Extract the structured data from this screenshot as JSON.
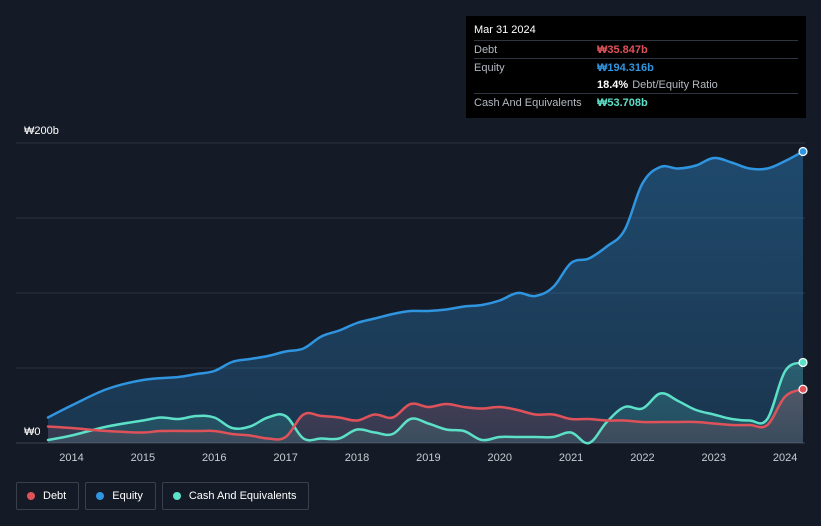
{
  "chart_data": {
    "type": "area",
    "currency": "₩",
    "unit": "b",
    "ylim": [
      0,
      200
    ],
    "y_top_label": "₩200b",
    "y_bottom_label": "₩0",
    "xlim": [
      2013.67,
      2024.25
    ],
    "x_tick_labels": [
      "2014",
      "2015",
      "2016",
      "2017",
      "2018",
      "2019",
      "2020",
      "2021",
      "2022",
      "2023",
      "2024"
    ],
    "grid": true,
    "legend_position": "bottom-left",
    "series": [
      {
        "name": "Debt",
        "color": "#e0525a",
        "points": [
          [
            2013.67,
            11
          ],
          [
            2014.0,
            10
          ],
          [
            2014.5,
            8
          ],
          [
            2015.0,
            7
          ],
          [
            2015.25,
            8
          ],
          [
            2015.75,
            8
          ],
          [
            2016.0,
            8
          ],
          [
            2016.25,
            6
          ],
          [
            2016.5,
            5
          ],
          [
            2016.75,
            3
          ],
          [
            2017.0,
            4
          ],
          [
            2017.25,
            19
          ],
          [
            2017.5,
            18
          ],
          [
            2017.75,
            17
          ],
          [
            2018.0,
            15
          ],
          [
            2018.25,
            19
          ],
          [
            2018.5,
            17
          ],
          [
            2018.75,
            26
          ],
          [
            2019.0,
            24
          ],
          [
            2019.25,
            26
          ],
          [
            2019.5,
            24
          ],
          [
            2019.75,
            23
          ],
          [
            2020.0,
            24
          ],
          [
            2020.25,
            22
          ],
          [
            2020.5,
            19
          ],
          [
            2020.75,
            19
          ],
          [
            2021.0,
            16
          ],
          [
            2021.25,
            16
          ],
          [
            2021.5,
            15
          ],
          [
            2021.75,
            15
          ],
          [
            2022.0,
            14
          ],
          [
            2022.25,
            14
          ],
          [
            2022.5,
            14
          ],
          [
            2022.75,
            14
          ],
          [
            2023.0,
            13
          ],
          [
            2023.25,
            12
          ],
          [
            2023.5,
            12
          ],
          [
            2023.75,
            12
          ],
          [
            2024.0,
            31
          ],
          [
            2024.25,
            35.847
          ]
        ]
      },
      {
        "name": "Equity",
        "color": "#2f95e0",
        "points": [
          [
            2013.67,
            17
          ],
          [
            2014.0,
            25
          ],
          [
            2014.5,
            36
          ],
          [
            2015.0,
            42
          ],
          [
            2015.5,
            44
          ],
          [
            2015.75,
            46
          ],
          [
            2016.0,
            48
          ],
          [
            2016.25,
            54
          ],
          [
            2016.5,
            56
          ],
          [
            2016.75,
            58
          ],
          [
            2017.0,
            61
          ],
          [
            2017.25,
            63
          ],
          [
            2017.5,
            71
          ],
          [
            2017.75,
            75
          ],
          [
            2018.0,
            80
          ],
          [
            2018.25,
            83
          ],
          [
            2018.5,
            86
          ],
          [
            2018.75,
            88
          ],
          [
            2019.0,
            88
          ],
          [
            2019.25,
            89
          ],
          [
            2019.5,
            91
          ],
          [
            2019.75,
            92
          ],
          [
            2020.0,
            95
          ],
          [
            2020.25,
            100
          ],
          [
            2020.5,
            98
          ],
          [
            2020.75,
            104
          ],
          [
            2021.0,
            120
          ],
          [
            2021.25,
            123
          ],
          [
            2021.5,
            131
          ],
          [
            2021.75,
            142
          ],
          [
            2022.0,
            173
          ],
          [
            2022.25,
            184
          ],
          [
            2022.5,
            183
          ],
          [
            2022.75,
            185
          ],
          [
            2023.0,
            190
          ],
          [
            2023.25,
            187
          ],
          [
            2023.5,
            183
          ],
          [
            2023.75,
            183
          ],
          [
            2024.0,
            188
          ],
          [
            2024.25,
            194.316
          ]
        ]
      },
      {
        "name": "Cash And Equivalents",
        "color": "#5ce0c8",
        "points": [
          [
            2013.67,
            2
          ],
          [
            2014.0,
            5
          ],
          [
            2014.5,
            11
          ],
          [
            2015.0,
            15
          ],
          [
            2015.25,
            17
          ],
          [
            2015.5,
            16
          ],
          [
            2015.75,
            18
          ],
          [
            2016.0,
            17
          ],
          [
            2016.25,
            10
          ],
          [
            2016.5,
            11
          ],
          [
            2016.75,
            17
          ],
          [
            2017.0,
            18
          ],
          [
            2017.25,
            3
          ],
          [
            2017.5,
            3
          ],
          [
            2017.75,
            3
          ],
          [
            2018.0,
            9
          ],
          [
            2018.25,
            7
          ],
          [
            2018.5,
            6
          ],
          [
            2018.75,
            16
          ],
          [
            2019.0,
            13
          ],
          [
            2019.25,
            9
          ],
          [
            2019.5,
            8
          ],
          [
            2019.75,
            2
          ],
          [
            2020.0,
            4
          ],
          [
            2020.25,
            4
          ],
          [
            2020.5,
            4
          ],
          [
            2020.75,
            4
          ],
          [
            2021.0,
            7
          ],
          [
            2021.25,
            0
          ],
          [
            2021.5,
            14
          ],
          [
            2021.75,
            24
          ],
          [
            2022.0,
            23
          ],
          [
            2022.25,
            33
          ],
          [
            2022.5,
            28
          ],
          [
            2022.75,
            22
          ],
          [
            2023.0,
            19
          ],
          [
            2023.25,
            16
          ],
          [
            2023.5,
            15
          ],
          [
            2023.75,
            16
          ],
          [
            2024.0,
            48
          ],
          [
            2024.25,
            53.708
          ]
        ]
      }
    ]
  },
  "tooltip": {
    "date": "Mar 31 2024",
    "debt_label": "Debt",
    "debt_value": "₩35.847b",
    "equity_label": "Equity",
    "equity_value": "₩194.316b",
    "ratio_value": "18.4%",
    "ratio_label": "Debt/Equity Ratio",
    "cash_label": "Cash And Equivalents",
    "cash_value": "₩53.708b"
  },
  "legend": {
    "debt": "Debt",
    "equity": "Equity",
    "cash": "Cash And Equivalents"
  },
  "colors": {
    "debt": "#e0525a",
    "equity": "#2f95e0",
    "cash": "#5ce0c8"
  }
}
